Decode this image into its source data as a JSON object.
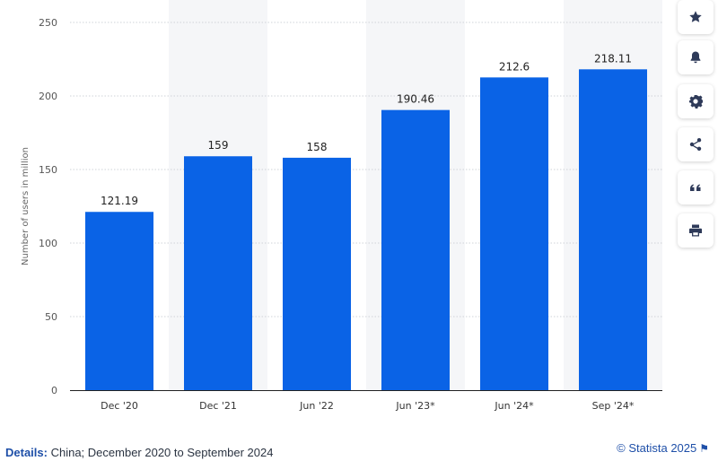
{
  "chart_data": {
    "type": "bar",
    "categories": [
      "Dec '20",
      "Dec '21",
      "Jun '22",
      "Jun '23*",
      "Jun '24*",
      "Sep '24*"
    ],
    "values": [
      121.19,
      159,
      158,
      190.46,
      212.6,
      218.11
    ],
    "value_labels": [
      "121.19",
      "159",
      "158",
      "190.46",
      "212.6",
      "218.11"
    ],
    "ylabel": "Number of users in million",
    "ylim": [
      0,
      250
    ],
    "yticks": [
      0,
      50,
      100,
      150,
      200,
      250
    ],
    "grid": true,
    "bar_color": "#0a63e6",
    "band_color": "#f5f6f8"
  },
  "footer": {
    "details_label": "Details:",
    "details_text": "China; December 2020 to September 2024",
    "credit": "© Statista 2025"
  },
  "tools": [
    {
      "name": "star-icon"
    },
    {
      "name": "bell-icon"
    },
    {
      "name": "gear-icon"
    },
    {
      "name": "share-icon"
    },
    {
      "name": "quote-icon"
    },
    {
      "name": "print-icon"
    }
  ]
}
